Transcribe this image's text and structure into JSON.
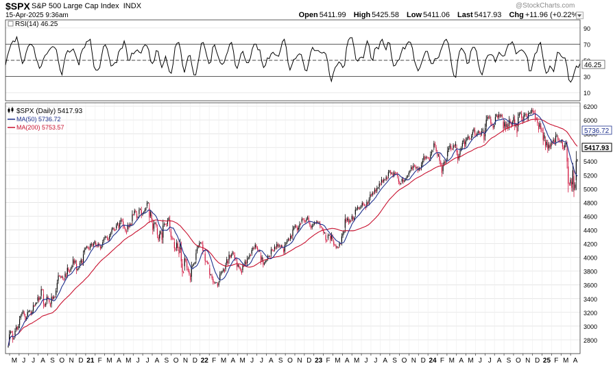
{
  "header": {
    "symbol": "$SPX",
    "description": "S&P 500 Large Cap Index",
    "exchange": "INDX",
    "datetime": "15-Apr-2025 9:36am",
    "brand": "@StockCharts.com",
    "open_label": "Open",
    "open": "5411.99",
    "high_label": "High",
    "high": "5425.58",
    "low_label": "Low",
    "low": "5411.06",
    "last_label": "Last",
    "last": "5417.93",
    "chg_label": "Chg",
    "chg": "+11.96 (+0.22%)"
  },
  "colors": {
    "price_up": "#000000",
    "price_down": "#d0103a",
    "ma50": "#1c2f8c",
    "ma200": "#c8102e",
    "grid": "#dcdcdc",
    "rsi": "#000000"
  },
  "chart_data": [
    {
      "type": "line",
      "panel": "rsi",
      "title": "RSI(14) 46.25",
      "series_name": "RSI(14)",
      "last_value": "46.25",
      "ylim": [
        0,
        100
      ],
      "y_ticks": [
        10,
        30,
        50,
        70,
        90
      ],
      "reference_lines": [
        30,
        50,
        70
      ],
      "values": [
        44,
        55,
        63,
        70,
        74,
        73,
        79,
        69,
        56,
        46,
        50,
        60,
        67,
        70,
        69,
        66,
        54,
        48,
        40,
        43,
        51,
        56,
        58,
        62,
        65,
        67,
        66,
        63,
        50,
        38,
        32,
        46,
        57,
        62,
        60,
        62,
        64,
        58,
        51,
        44,
        58,
        64,
        66,
        73,
        74,
        76,
        59,
        42,
        38,
        38,
        41,
        55,
        67,
        69,
        64,
        54,
        43,
        44,
        47,
        47,
        60,
        64,
        65,
        74,
        66,
        50,
        50,
        59,
        58,
        61,
        63,
        60,
        59,
        66,
        69,
        68,
        63,
        49,
        46,
        50,
        62,
        61,
        49,
        41,
        47,
        55,
        45,
        36,
        34,
        46,
        66,
        71,
        72,
        62,
        44,
        35,
        46,
        55,
        56,
        43,
        32,
        32,
        44,
        57,
        71,
        72,
        64,
        54,
        46,
        48,
        66,
        69,
        61,
        54,
        47,
        45,
        47,
        55,
        61,
        70,
        72,
        61,
        44,
        40,
        48,
        58,
        61,
        53,
        47,
        47,
        53,
        64,
        70,
        70,
        63,
        63,
        49,
        41,
        44,
        53,
        52,
        58,
        60,
        57,
        56,
        55,
        63,
        73,
        76,
        66,
        47,
        38,
        44,
        51,
        52,
        56,
        58,
        57,
        48,
        38,
        37,
        48,
        60,
        66,
        62,
        62,
        62,
        60,
        59,
        60,
        58,
        49,
        32,
        24,
        34,
        41,
        44,
        48,
        46,
        41,
        44,
        65,
        75,
        78,
        78,
        66,
        51,
        49,
        53,
        54,
        53,
        65,
        74,
        68,
        53,
        50,
        64,
        66,
        64,
        73,
        76,
        68,
        63,
        72,
        71,
        54,
        43,
        44,
        49,
        51,
        59,
        66,
        64,
        70,
        73,
        72,
        65,
        50,
        43,
        37,
        41,
        48,
        55,
        61,
        61,
        52,
        46,
        46,
        52,
        52,
        54,
        62,
        68,
        74,
        76,
        71,
        58,
        41,
        31,
        29,
        49,
        61,
        65,
        62,
        58,
        46,
        47,
        61,
        66,
        66,
        61,
        46,
        36,
        32,
        41,
        51,
        56,
        57,
        57,
        55,
        48,
        54,
        60,
        57,
        55,
        56,
        64,
        70,
        70,
        73,
        68,
        58,
        60,
        62,
        63,
        61,
        58,
        53,
        37,
        37,
        48,
        58,
        60,
        69,
        72,
        58,
        43,
        34,
        36,
        43,
        40,
        36,
        48,
        60,
        59,
        55,
        53,
        53,
        43,
        26,
        23,
        27,
        36,
        43,
        41,
        46
      ],
      "x_period": "2020-04 to 2025-04 (weekly)"
    },
    {
      "type": "candlestick",
      "panel": "price",
      "title": "$SPX (Daily) 5417.93",
      "series_name": "$SPX (Daily)",
      "last_value": "5417.93",
      "ylim": [
        2600,
        6250
      ],
      "y_ticks": [
        2800,
        3000,
        3200,
        3400,
        3600,
        3800,
        4000,
        4200,
        4400,
        4600,
        4800,
        5000,
        5200,
        5400,
        5600,
        5800,
        6000,
        6200
      ],
      "x_month_labels": [
        "M",
        "J",
        "J",
        "A",
        "S",
        "O",
        "N",
        "D",
        "21",
        "F",
        "M",
        "A",
        "M",
        "J",
        "J",
        "A",
        "S",
        "O",
        "N",
        "D",
        "22",
        "F",
        "M",
        "A",
        "M",
        "J",
        "J",
        "A",
        "S",
        "O",
        "N",
        "D",
        "23",
        "F",
        "M",
        "A",
        "M",
        "J",
        "J",
        "A",
        "S",
        "O",
        "N",
        "D",
        "24",
        "F",
        "M",
        "A",
        "M",
        "J",
        "J",
        "A",
        "S",
        "O",
        "N",
        "D",
        "25",
        "F",
        "M",
        "A"
      ],
      "x_start": "2020-05",
      "close": [
        2710,
        2882,
        2923,
        2910,
        2805,
        2822,
        2929,
        2992,
        2955,
        3003,
        3100,
        3149,
        3187,
        3221,
        3166,
        3092,
        3122,
        3206,
        3215,
        3225,
        3168,
        3212,
        3303,
        3291,
        3329,
        3338,
        3422,
        3374,
        3419,
        3536,
        3528,
        3327,
        3292,
        3328,
        3426,
        3404,
        3350,
        3293,
        3426,
        3392,
        3430,
        3418,
        3517,
        3629,
        3735,
        3730,
        3709,
        3722,
        3695,
        3671,
        3762,
        3721,
        3849,
        3806,
        3787,
        3839,
        3874,
        3973,
        3917,
        3946,
        3814,
        3828,
        3846,
        3917,
        3966,
        3911,
        4044,
        4111,
        4138,
        4157,
        4139,
        4120,
        4170,
        4198,
        4171,
        4200,
        4233,
        4175,
        4162,
        4197,
        4176,
        4129,
        4160,
        4223,
        4266,
        4298,
        4299,
        4275,
        4247,
        4315,
        4349,
        4408,
        4426,
        4401,
        4397,
        4468,
        4501,
        4426,
        4506,
        4547,
        4536,
        4460,
        4437,
        4386,
        4361,
        4473,
        4437,
        4489,
        4474,
        4626,
        4621,
        4680,
        4669,
        4577,
        4585,
        4692,
        4705,
        4617,
        4630,
        4657,
        4689,
        4714,
        4792,
        4797,
        4580,
        4662,
        4551,
        4396,
        4491,
        4501,
        4463,
        4331,
        4253,
        4343,
        4375,
        4256,
        4463,
        4487,
        4481,
        4466,
        4541,
        4570,
        4433,
        4297,
        4276,
        4266,
        4133,
        4112,
        4215,
        4135,
        4048,
        4216,
        3943,
        3788,
        3783,
        3985,
        3952,
        3855,
        3811,
        3763,
        3670,
        3860,
        3883,
        3905,
        3924,
        4061,
        4134,
        4162,
        4212,
        4212,
        4206,
        4095,
        4095,
        3950,
        3938,
        3919,
        3914,
        3746,
        3750,
        3700,
        3640,
        3629,
        3632,
        3634,
        3583,
        3636,
        3753,
        3778,
        3793,
        3826,
        3792,
        3889,
        3975,
        3908,
        4038,
        4000,
        4035,
        4073,
        4055,
        3985,
        3972,
        3861,
        3892,
        3847,
        3821,
        3773,
        3878,
        3870,
        3941,
        3901,
        3984,
        3993,
        4035,
        4032,
        4108,
        4139,
        4129,
        4184,
        4150,
        4115,
        4090,
        4090,
        3944,
        4001,
        3893,
        3917,
        3946,
        3958,
        4017,
        4017,
        4013,
        4115,
        4105,
        4092,
        4157,
        4127,
        4195,
        4160,
        4175,
        4153,
        4170,
        4151,
        4072,
        4178,
        4202,
        4245,
        4271,
        4253,
        4318,
        4288,
        4407,
        4436,
        4462,
        4444,
        4394,
        4435,
        4489,
        4485,
        4561,
        4553,
        4528,
        4515,
        4561,
        4585,
        4528,
        4467,
        4428,
        4461,
        4479,
        4509,
        4497,
        4522,
        4507,
        4508,
        4454,
        4440,
        4406,
        4356,
        4359,
        4250,
        4240,
        4323,
        4328,
        4246,
        4330,
        4265,
        4186,
        4177,
        4142,
        4152,
        4139,
        4205,
        4197,
        4304,
        4347,
        4374,
        4558,
        4526,
        4569,
        4509,
        4537,
        4524,
        4602,
        4549,
        4577,
        4694,
        4705,
        4733,
        4708,
        4719,
        4745,
        4792,
        4769,
        4758,
        4717,
        4806,
        4778,
        4838,
        4917,
        4899,
        4940,
        4930,
        4988,
        4958,
        5011,
        5013,
        5073,
        5062,
        5133,
        5097,
        5136,
        5129,
        5166,
        5145,
        5240,
        5254,
        5219,
        5227,
        5190,
        5235,
        5223,
        5219,
        5182,
        5102,
        5069,
        5073,
        5142,
        5101,
        5120,
        5138,
        5165,
        5186,
        5232,
        5258,
        5316,
        5290,
        5337,
        5334,
        5298,
        5308,
        5263,
        5297,
        5284,
        5348,
        5403,
        5471,
        5436,
        5458,
        5453,
        5448,
        5417,
        5499,
        5537,
        5554,
        5661,
        5629,
        5552,
        5484,
        5489,
        5406,
        5347,
        5230,
        5334,
        5394,
        5377,
        5415,
        5555,
        5591,
        5633,
        5579,
        5575,
        5632,
        5612,
        5655,
        5530,
        5420,
        5473,
        5548,
        5595,
        5665,
        5705,
        5616,
        5702,
        5733,
        5762,
        5728,
        5723,
        5766,
        5824,
        5869,
        5795,
        5778,
        5807,
        5833,
        5808,
        5779,
        5841,
        5860,
        5713,
        5882,
        6005,
        6044,
        6035,
        6047,
        5948,
        5931,
        5887,
        5927,
        6043,
        6075,
        6030,
        6085,
        6050,
        6071,
        6053,
        5877,
        5967,
        5872,
        5944,
        5873,
        6001,
        5964,
        5916,
        5969,
        6043,
        5911,
        5932,
        5813,
        6040,
        6089,
        6106,
        6030,
        5972,
        6068,
        6083,
        6069,
        6013,
        6097,
        6101,
        6117,
        6144,
        6118,
        6117,
        6026,
        6014,
        5955,
        5861,
        5954,
        5862,
        5842,
        5707,
        5779,
        5614,
        5681,
        5573,
        5638,
        5599,
        5675,
        5663,
        5713,
        5667,
        5768,
        5776,
        5711,
        5694,
        5681,
        5696,
        5612,
        5580,
        5633,
        5671,
        5396,
        5074,
        5063,
        5131,
        5013,
        5268,
        4980,
        5060,
        5405,
        5418
      ]
    }
  ]
}
